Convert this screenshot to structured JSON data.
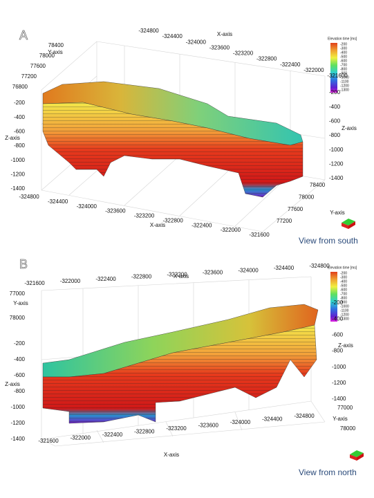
{
  "panels": [
    {
      "letter": "A",
      "x_axis_title": "X-axis",
      "y_axis_title": "Y-axis",
      "z_axis_title": "Z-axis",
      "top_x_ticks": [
        "-324800",
        "-324400",
        "-324000",
        "-323600",
        "-323200",
        "-322800",
        "-322400",
        "-322000",
        "-321600"
      ],
      "top_y_ticks": [
        "78400",
        "78000",
        "77600",
        "77200",
        "76800"
      ],
      "left_z_ticks": [
        "-200",
        "-400",
        "-600",
        "-800",
        "-1000",
        "-1200",
        "-1400"
      ],
      "right_z_ticks": [
        "-200",
        "-400",
        "-600",
        "-800",
        "-1000",
        "-1200",
        "-1400"
      ],
      "bottom_x_ticks": [
        "-324800",
        "-324400",
        "-324000",
        "-323600",
        "-323200",
        "-322800",
        "-322400",
        "-322000",
        "-321600"
      ],
      "bottom_y_ticks": [
        "78400",
        "78000",
        "77600",
        "77200"
      ],
      "colorbar_title": "Elevation time [ms]",
      "colorbar_labels": [
        "-200",
        "-300",
        "-400",
        "-500",
        "-600",
        "-700",
        "-800",
        "-900",
        "-1000",
        "-1100",
        "-1200",
        "-1300"
      ],
      "view": "View from south"
    },
    {
      "letter": "B",
      "x_axis_title": "X-axis",
      "y_axis_title": "Y-axis",
      "z_axis_title": "Z-axis",
      "top_x_ticks": [
        "-321600",
        "-322000",
        "-322400",
        "-322800",
        "-323200",
        "-323600",
        "-324000",
        "-324400",
        "-324800"
      ],
      "top_y_ticks": [
        "77000",
        "78000"
      ],
      "left_z_ticks": [
        "-200",
        "-400",
        "-600",
        "-800",
        "-1000",
        "-1200",
        "-1400"
      ],
      "right_z_ticks": [
        "-200",
        "-400",
        "-600",
        "-800",
        "-1000",
        "-1200",
        "-1400"
      ],
      "bottom_x_ticks": [
        "-321600",
        "-322000",
        "-322400",
        "-322800",
        "-323200",
        "-323600",
        "-324000",
        "-324400",
        "-324800"
      ],
      "bottom_y_ticks": [
        "77000",
        "78000"
      ],
      "colorbar_title": "Elevation time [ms]",
      "colorbar_labels": [
        "-200",
        "-300",
        "-400",
        "-500",
        "-600",
        "-700",
        "-800",
        "-900",
        "-1000",
        "-1100",
        "-1200",
        "-1300"
      ],
      "view": "View from north"
    }
  ]
}
